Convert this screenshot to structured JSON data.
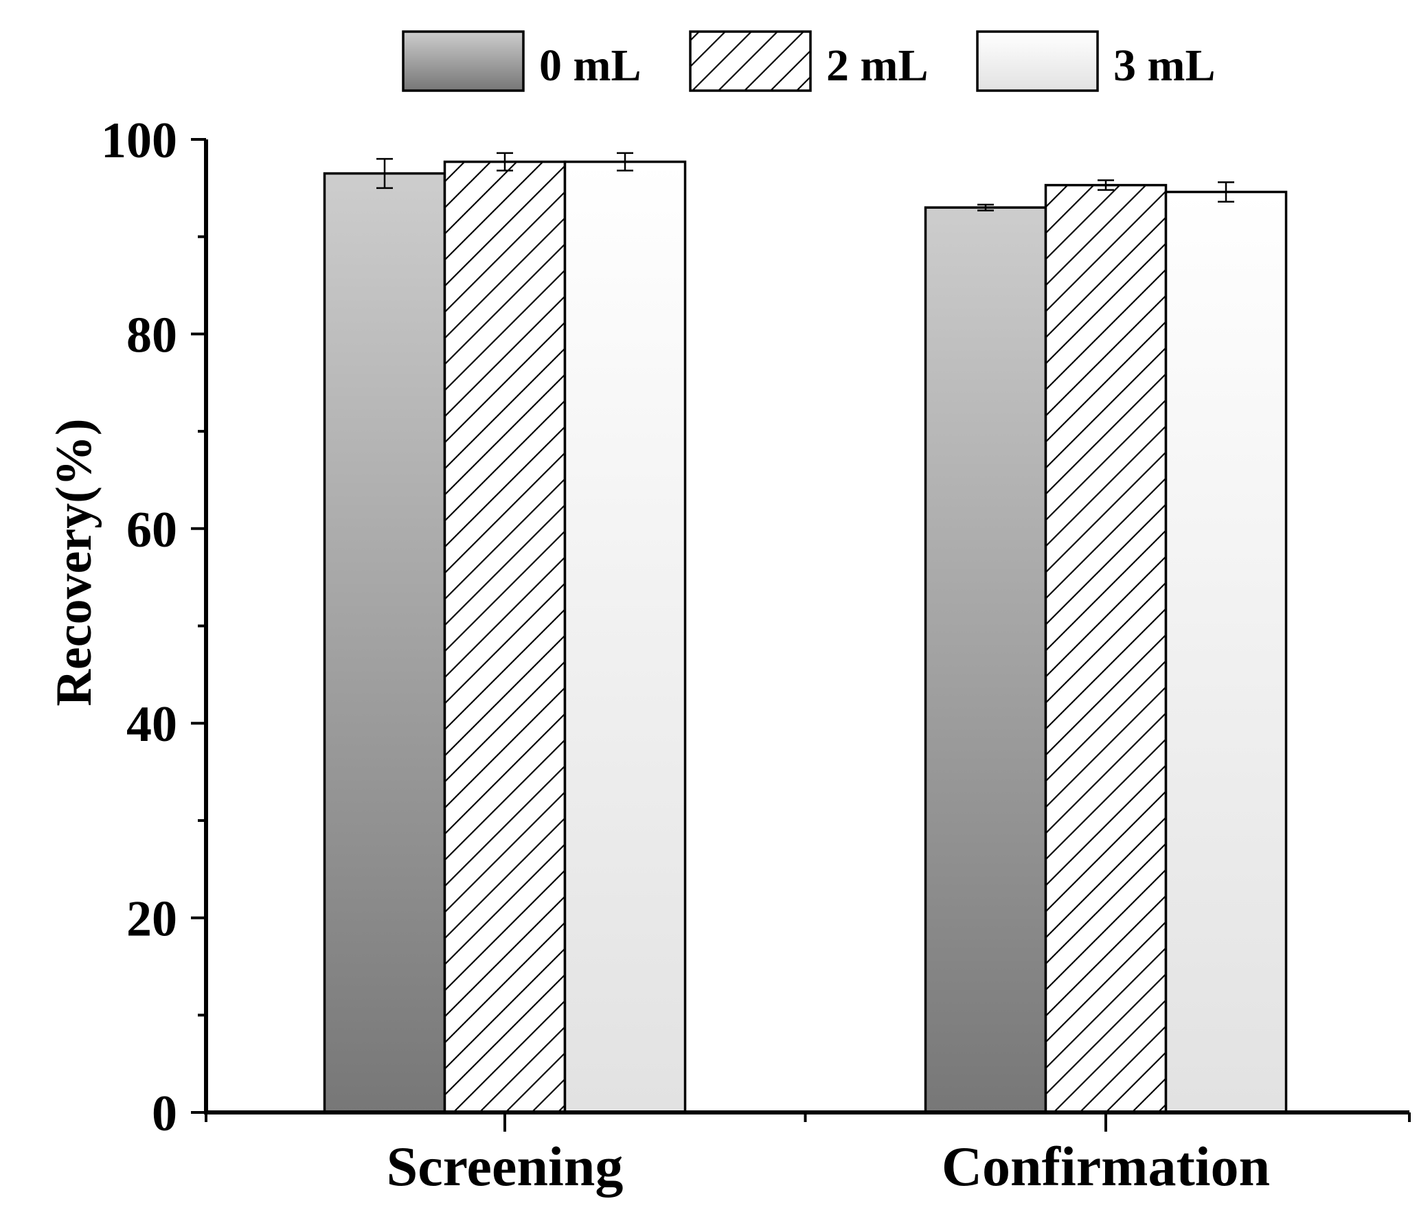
{
  "chart_data": {
    "type": "bar",
    "title": "",
    "xlabel": "",
    "ylabel": "Recovery(%)",
    "ylim": [
      0,
      100
    ],
    "yticks": [
      0,
      20,
      40,
      60,
      80,
      100
    ],
    "yticks_minor": [
      10,
      30,
      50,
      70,
      90
    ],
    "categories": [
      "Screening",
      "Confirmation"
    ],
    "series": [
      {
        "name": "0 mL",
        "style": "gray-gradient",
        "values": [
          96.5,
          93.0
        ],
        "errors": [
          1.5,
          0.3
        ]
      },
      {
        "name": "2 mL",
        "style": "hatched",
        "values": [
          97.7,
          95.3
        ],
        "errors": [
          0.9,
          0.5
        ]
      },
      {
        "name": "3 mL",
        "style": "light-gradient",
        "values": [
          97.7,
          94.6
        ],
        "errors": [
          0.9,
          1.0
        ]
      }
    ],
    "legend_position": "top",
    "grid": false
  }
}
